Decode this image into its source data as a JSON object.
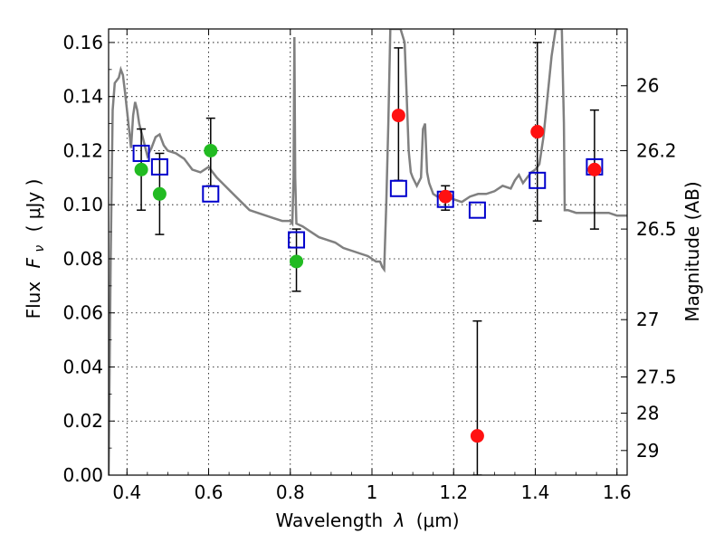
{
  "chart_data": {
    "type": "scatter",
    "xlabel": "Wavelength",
    "xlabel_symbol": "λ",
    "xlabel_unit": "(μm)",
    "ylabel": "Flux",
    "ylabel_symbol": "F",
    "ylabel_subscript": "ν",
    "ylabel_unit": "( μJy )",
    "y2label": "Magnitude (AB)",
    "xlim": [
      0.355,
      1.625
    ],
    "ylim": [
      0.0,
      0.165
    ],
    "grid": true,
    "grid_style": "dotted",
    "x_ticks": [
      0.4,
      0.6,
      0.8,
      1.0,
      1.2,
      1.4,
      1.6
    ],
    "x_tick_labels": [
      "0.4",
      "0.6",
      "0.8",
      "1",
      "1.2",
      "1.4",
      "1.6"
    ],
    "y_ticks": [
      0.0,
      0.02,
      0.04,
      0.06,
      0.08,
      0.1,
      0.12,
      0.14,
      0.16
    ],
    "y_tick_labels": [
      "0.00",
      "0.02",
      "0.04",
      "0.06",
      "0.08",
      "0.10",
      "0.12",
      "0.14",
      "0.16"
    ],
    "mag_ticks": [
      {
        "label": "26",
        "flux": 0.144
      },
      {
        "label": "26.2",
        "flux": 0.12
      },
      {
        "label": "26.5",
        "flux": 0.091
      },
      {
        "label": "27",
        "flux": 0.0575
      },
      {
        "label": "27.5",
        "flux": 0.0363
      },
      {
        "label": "28",
        "flux": 0.0229
      },
      {
        "label": "29",
        "flux": 0.0091
      }
    ],
    "colors": {
      "model": "#808080",
      "model_points": "#0000cc",
      "filled_a": "#22bb22",
      "filled_b": "#ff1111",
      "errorbar": "#000000"
    },
    "model_spectrum": [
      [
        0.355,
        0.0
      ],
      [
        0.36,
        0.08
      ],
      [
        0.365,
        0.135
      ],
      [
        0.37,
        0.145
      ],
      [
        0.38,
        0.147
      ],
      [
        0.385,
        0.15
      ],
      [
        0.39,
        0.148
      ],
      [
        0.395,
        0.142
      ],
      [
        0.4,
        0.135
      ],
      [
        0.405,
        0.128
      ],
      [
        0.41,
        0.121
      ],
      [
        0.415,
        0.133
      ],
      [
        0.42,
        0.138
      ],
      [
        0.425,
        0.135
      ],
      [
        0.43,
        0.13
      ],
      [
        0.44,
        0.124
      ],
      [
        0.45,
        0.118
      ],
      [
        0.46,
        0.121
      ],
      [
        0.47,
        0.125
      ],
      [
        0.48,
        0.126
      ],
      [
        0.49,
        0.122
      ],
      [
        0.5,
        0.12
      ],
      [
        0.52,
        0.119
      ],
      [
        0.54,
        0.117
      ],
      [
        0.56,
        0.113
      ],
      [
        0.58,
        0.112
      ],
      [
        0.6,
        0.114
      ],
      [
        0.62,
        0.11
      ],
      [
        0.64,
        0.107
      ],
      [
        0.66,
        0.104
      ],
      [
        0.68,
        0.101
      ],
      [
        0.7,
        0.098
      ],
      [
        0.72,
        0.097
      ],
      [
        0.74,
        0.096
      ],
      [
        0.76,
        0.095
      ],
      [
        0.78,
        0.094
      ],
      [
        0.8,
        0.094
      ],
      [
        0.805,
        0.093
      ],
      [
        0.808,
        0.11
      ],
      [
        0.81,
        0.162
      ],
      [
        0.812,
        0.11
      ],
      [
        0.815,
        0.093
      ],
      [
        0.83,
        0.092
      ],
      [
        0.85,
        0.09
      ],
      [
        0.87,
        0.088
      ],
      [
        0.89,
        0.087
      ],
      [
        0.91,
        0.086
      ],
      [
        0.93,
        0.084
      ],
      [
        0.95,
        0.083
      ],
      [
        0.97,
        0.082
      ],
      [
        0.99,
        0.081
      ],
      [
        1.01,
        0.079
      ],
      [
        1.02,
        0.079
      ],
      [
        1.025,
        0.077
      ],
      [
        1.03,
        0.076
      ],
      [
        1.035,
        0.1
      ],
      [
        1.04,
        0.13
      ],
      [
        1.045,
        0.165
      ],
      [
        1.06,
        0.165
      ],
      [
        1.07,
        0.165
      ],
      [
        1.08,
        0.16
      ],
      [
        1.085,
        0.14
      ],
      [
        1.09,
        0.12
      ],
      [
        1.095,
        0.112
      ],
      [
        1.1,
        0.11
      ],
      [
        1.11,
        0.107
      ],
      [
        1.12,
        0.11
      ],
      [
        1.125,
        0.128
      ],
      [
        1.13,
        0.13
      ],
      [
        1.135,
        0.112
      ],
      [
        1.14,
        0.108
      ],
      [
        1.15,
        0.104
      ],
      [
        1.16,
        0.103
      ],
      [
        1.18,
        0.103
      ],
      [
        1.2,
        0.102
      ],
      [
        1.22,
        0.101
      ],
      [
        1.24,
        0.103
      ],
      [
        1.26,
        0.104
      ],
      [
        1.28,
        0.104
      ],
      [
        1.3,
        0.105
      ],
      [
        1.32,
        0.107
      ],
      [
        1.34,
        0.106
      ],
      [
        1.35,
        0.109
      ],
      [
        1.36,
        0.111
      ],
      [
        1.37,
        0.108
      ],
      [
        1.38,
        0.11
      ],
      [
        1.39,
        0.112
      ],
      [
        1.4,
        0.113
      ],
      [
        1.41,
        0.115
      ],
      [
        1.42,
        0.125
      ],
      [
        1.43,
        0.14
      ],
      [
        1.44,
        0.155
      ],
      [
        1.45,
        0.165
      ],
      [
        1.46,
        0.165
      ],
      [
        1.465,
        0.165
      ],
      [
        1.47,
        0.13
      ],
      [
        1.472,
        0.098
      ],
      [
        1.48,
        0.098
      ],
      [
        1.5,
        0.097
      ],
      [
        1.52,
        0.097
      ],
      [
        1.54,
        0.097
      ],
      [
        1.56,
        0.097
      ],
      [
        1.58,
        0.097
      ],
      [
        1.6,
        0.096
      ],
      [
        1.625,
        0.096
      ]
    ],
    "series": [
      {
        "marker": "open-square",
        "points": [
          {
            "x": 0.435,
            "y": 0.119
          },
          {
            "x": 0.48,
            "y": 0.114
          },
          {
            "x": 0.605,
            "y": 0.104
          },
          {
            "x": 0.815,
            "y": 0.087
          },
          {
            "x": 1.065,
            "y": 0.106
          },
          {
            "x": 1.18,
            "y": 0.102
          },
          {
            "x": 1.258,
            "y": 0.098
          },
          {
            "x": 1.405,
            "y": 0.109
          },
          {
            "x": 1.545,
            "y": 0.114
          }
        ]
      },
      {
        "marker": "filled-circle",
        "color_key": "filled_a",
        "points": [
          {
            "x": 0.435,
            "y": 0.113,
            "yerr_low": 0.098,
            "yerr_high": 0.128
          },
          {
            "x": 0.48,
            "y": 0.104,
            "yerr_low": 0.089,
            "yerr_high": 0.119
          },
          {
            "x": 0.605,
            "y": 0.12,
            "yerr_low": 0.107,
            "yerr_high": 0.132
          },
          {
            "x": 0.815,
            "y": 0.079,
            "yerr_low": 0.068,
            "yerr_high": 0.091
          }
        ]
      },
      {
        "marker": "filled-circle",
        "color_key": "filled_b",
        "points": [
          {
            "x": 1.065,
            "y": 0.133,
            "yerr_low": 0.109,
            "yerr_high": 0.158
          },
          {
            "x": 1.18,
            "y": 0.103,
            "yerr_low": 0.098,
            "yerr_high": 0.107
          },
          {
            "x": 1.258,
            "y": 0.0145,
            "yerr_low": 0.0,
            "yerr_high": 0.057
          },
          {
            "x": 1.405,
            "y": 0.127,
            "yerr_low": 0.094,
            "yerr_high": 0.16
          },
          {
            "x": 1.545,
            "y": 0.113,
            "yerr_low": 0.091,
            "yerr_high": 0.135
          }
        ]
      }
    ]
  }
}
